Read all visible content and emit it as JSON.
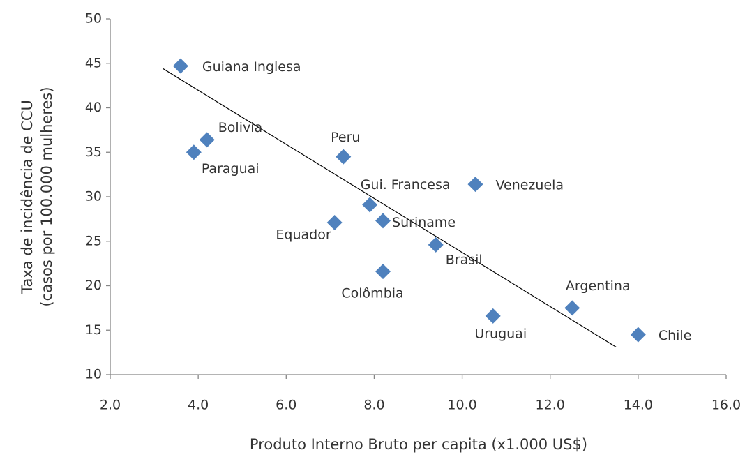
{
  "chart_data": {
    "type": "scatter",
    "x_label": "Produto Interno Bruto per capita (x1.000 US$)",
    "y_label": [
      "Taxa de incidência de CCU",
      "(casos por 100.000 mulheres)"
    ],
    "series": [
      {
        "color": "#4f81bd",
        "labels": [
          "Guiana Inglesa",
          "Bolivia",
          "Paraguai",
          "Peru",
          "Venezuela",
          "Gui. Francesa",
          "Suriname",
          "Equador",
          "Brasil",
          "Colômbia",
          "Argentina",
          "Uruguai",
          "Chile"
        ],
        "x": [
          3.6,
          4.2,
          3.9,
          7.3,
          10.3,
          7.9,
          8.2,
          7.1,
          9.4,
          8.2,
          12.5,
          10.7,
          14.0
        ],
        "values": [
          44.7,
          36.4,
          35.0,
          34.5,
          31.4,
          29.1,
          27.3,
          27.1,
          24.6,
          21.6,
          17.5,
          16.6,
          14.5
        ]
      }
    ],
    "trendline": {
      "color": "#000000",
      "x": [
        3.2,
        13.5
      ],
      "values": [
        44.4,
        13.1
      ]
    },
    "xlim": [
      2,
      16
    ],
    "xticks": [
      {
        "value": 2,
        "label": "2.0"
      },
      {
        "value": 4,
        "label": "4.0"
      },
      {
        "value": 6,
        "label": "6.0"
      },
      {
        "value": 8,
        "label": "8.0"
      },
      {
        "value": 10,
        "label": "10.0"
      },
      {
        "value": 12,
        "label": "12.0"
      },
      {
        "value": 14,
        "label": "14.0"
      },
      {
        "value": 16,
        "label": "16.0"
      }
    ],
    "ylim": [
      10,
      50
    ],
    "yticks": [
      10,
      15,
      20,
      25,
      30,
      35,
      40,
      45,
      50
    ]
  }
}
